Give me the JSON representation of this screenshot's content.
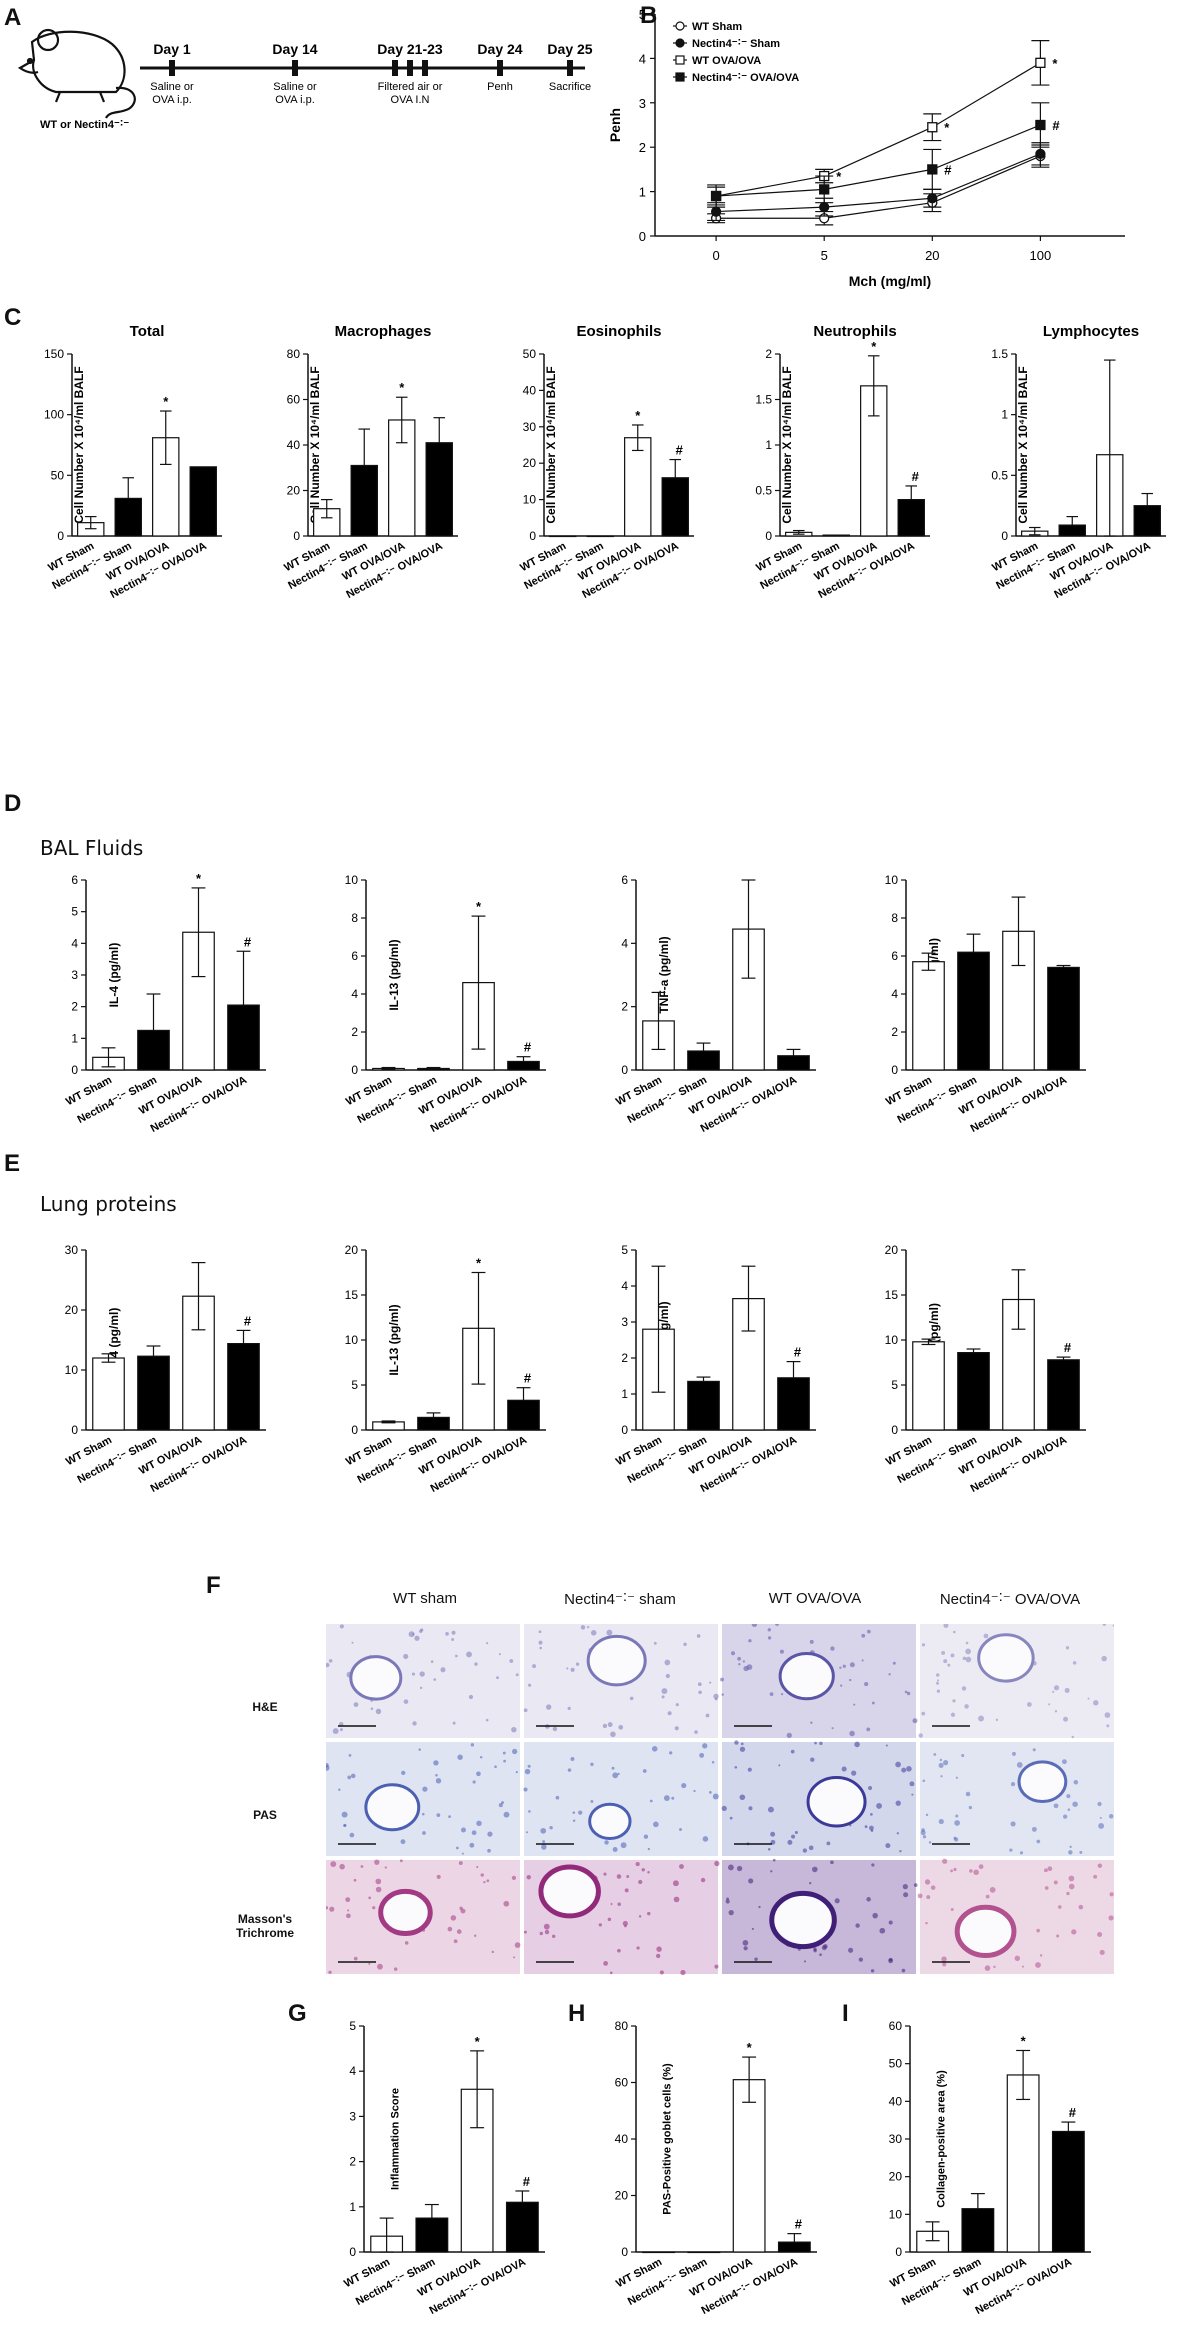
{
  "panel_labels": {
    "A": "A",
    "B": "B",
    "C": "C",
    "D": "D",
    "E": "E",
    "F": "F",
    "G": "G",
    "H": "H",
    "I": "I"
  },
  "timeline": {
    "mouse_label": "WT or Nectin4⁻˸⁻",
    "events": [
      {
        "day": "Day 1",
        "text": [
          "Saline or",
          "OVA i.p."
        ]
      },
      {
        "day": "Day 14",
        "text": [
          "Saline or",
          "OVA i.p."
        ]
      },
      {
        "day": "Day 21-23",
        "text": [
          "Filtered air or",
          "OVA I.N"
        ]
      },
      {
        "day": "Day 24",
        "text": [
          "Penh"
        ]
      },
      {
        "day": "Day 25",
        "text": [
          "Sacrifice"
        ]
      }
    ]
  },
  "legend_b": [
    "WT Sham",
    "Nectin4⁻˸⁻ Sham",
    "WT OVA/OVA",
    "Nectin4⁻˸⁻ OVA/OVA"
  ],
  "groups": [
    "WT Sham",
    "Nectin4⁻˸⁻ Sham",
    "WT OVA/OVA",
    "Nectin4⁻˸⁻ OVA/OVA"
  ],
  "sections": {
    "D": "BAL Fluids",
    "E": "Lung proteins"
  },
  "histology": {
    "columns": [
      "WT sham",
      "Nectin4⁻˸⁻ sham",
      "WT OVA/OVA",
      "Nectin4⁻˸⁻ OVA/OVA"
    ],
    "rows": [
      [
        "H&E"
      ],
      [
        "PAS"
      ],
      [
        "Masson's",
        "Trichrome"
      ]
    ]
  },
  "colors": {
    "open": "#ffffff",
    "filled": "#000000",
    "stroke": "#111111"
  },
  "chart_data": [
    {
      "id": "B",
      "type": "line",
      "title": "",
      "xlabel": "Mch (mg/ml)",
      "ylabel": "Penh",
      "x": [
        0,
        5,
        20,
        100
      ],
      "ylim": [
        0,
        5
      ],
      "yticks": [
        0,
        1,
        2,
        3,
        4,
        5
      ],
      "series": [
        {
          "name": "WT Sham",
          "values": [
            0.4,
            0.4,
            0.75,
            1.8
          ],
          "err": [
            0.1,
            0.15,
            0.2,
            0.25
          ],
          "marker": "open-circle"
        },
        {
          "name": "Nectin4⁻˸⁻ Sham",
          "values": [
            0.55,
            0.65,
            0.85,
            1.85
          ],
          "err": [
            0.2,
            0.2,
            0.2,
            0.25
          ],
          "marker": "filled-circle"
        },
        {
          "name": "WT OVA/OVA",
          "values": [
            0.9,
            1.35,
            2.45,
            3.9
          ],
          "err": [
            0.25,
            0.15,
            0.3,
            0.5
          ],
          "marker": "open-square"
        },
        {
          "name": "Nectin4⁻˸⁻ OVA/OVA",
          "values": [
            0.9,
            1.05,
            1.5,
            2.5
          ],
          "err": [
            0.2,
            0.3,
            0.45,
            0.5
          ],
          "marker": "filled-square"
        }
      ],
      "annotations": [
        {
          "series": 2,
          "x": 5,
          "text": "*"
        },
        {
          "series": 2,
          "x": 20,
          "text": "*"
        },
        {
          "series": 2,
          "x": 100,
          "text": "*"
        },
        {
          "series": 3,
          "x": 20,
          "text": "#"
        },
        {
          "series": 3,
          "x": 100,
          "text": "#"
        }
      ]
    },
    {
      "id": "C-total",
      "type": "bar",
      "title": "Total",
      "ylabel": "Cell Number X 10⁴/ml BALF",
      "ylim": [
        0,
        150
      ],
      "yticks": [
        0,
        50,
        100,
        150
      ],
      "values": [
        11,
        31,
        81,
        57
      ],
      "err": [
        5,
        17,
        22,
        0
      ],
      "marks": [
        "",
        "",
        "*",
        ""
      ]
    },
    {
      "id": "C-macrophages",
      "type": "bar",
      "title": "Macrophages",
      "ylabel": "Cell Number X 10⁴/ml BALF",
      "ylim": [
        0,
        80
      ],
      "yticks": [
        0,
        20,
        40,
        60,
        80
      ],
      "values": [
        12,
        31,
        51,
        41
      ],
      "err": [
        4,
        16,
        10,
        11
      ],
      "marks": [
        "",
        "",
        "*",
        ""
      ]
    },
    {
      "id": "C-eosinophils",
      "type": "bar",
      "title": "Eosinophils",
      "ylabel": "Cell Number X 10⁴/ml BALF",
      "ylim": [
        0,
        50
      ],
      "yticks": [
        0,
        10,
        20,
        30,
        40,
        50
      ],
      "values": [
        0,
        0,
        27,
        16
      ],
      "err": [
        0,
        0,
        3.5,
        5
      ],
      "marks": [
        "",
        "",
        "*",
        "#"
      ]
    },
    {
      "id": "C-neutrophils",
      "type": "bar",
      "title": "Neutrophils",
      "ylabel": "Cell Number X 10⁴/ml BALF",
      "ylim": [
        0,
        2
      ],
      "yticks": [
        0,
        0.5,
        1,
        1.5,
        2
      ],
      "values": [
        0.04,
        0.01,
        1.65,
        0.4
      ],
      "err": [
        0.02,
        0.0,
        0.33,
        0.15
      ],
      "marks": [
        "",
        "",
        "*",
        "#"
      ]
    },
    {
      "id": "C-lymphocytes",
      "type": "bar",
      "title": "Lymphocytes",
      "ylabel": "Cell Number X 10⁴/ml BALF",
      "ylim": [
        0,
        1.5
      ],
      "yticks": [
        0,
        0.5,
        1,
        1.5
      ],
      "values": [
        0.04,
        0.09,
        0.67,
        0.25
      ],
      "err": [
        0.03,
        0.07,
        0.78,
        0.1
      ],
      "marks": [
        "",
        "",
        "",
        ""
      ]
    },
    {
      "id": "D-IL4",
      "type": "bar",
      "title": "",
      "ylabel": "IL-4 (pg/ml)",
      "ylim": [
        0,
        6
      ],
      "yticks": [
        0,
        1,
        2,
        3,
        4,
        5,
        6
      ],
      "values": [
        0.4,
        1.25,
        4.35,
        2.05
      ],
      "err": [
        0.3,
        1.15,
        1.4,
        1.7
      ],
      "marks": [
        "",
        "",
        "*",
        "#"
      ]
    },
    {
      "id": "D-IL13",
      "type": "bar",
      "title": "",
      "ylabel": "IL-13 (pg/ml)",
      "ylim": [
        0,
        10
      ],
      "yticks": [
        0,
        2,
        4,
        6,
        8,
        10
      ],
      "values": [
        0.08,
        0.08,
        4.6,
        0.45
      ],
      "err": [
        0.05,
        0.05,
        3.5,
        0.25
      ],
      "marks": [
        "",
        "",
        "*",
        "#"
      ]
    },
    {
      "id": "D-TNFa",
      "type": "bar",
      "title": "",
      "ylabel": "TNF-a (pg/ml)",
      "ylim": [
        0,
        6
      ],
      "yticks": [
        0,
        2,
        4,
        6
      ],
      "values": [
        1.55,
        0.6,
        4.45,
        0.45
      ],
      "err": [
        0.9,
        0.25,
        1.55,
        0.2
      ],
      "marks": [
        "",
        "",
        "",
        ""
      ]
    },
    {
      "id": "D-IFNg",
      "type": "bar",
      "title": "",
      "ylabel": "IFN-g (pg/ml)",
      "ylim": [
        0,
        10
      ],
      "yticks": [
        0,
        2,
        4,
        6,
        8,
        10
      ],
      "values": [
        5.7,
        6.2,
        7.3,
        5.4
      ],
      "err": [
        0.45,
        0.95,
        1.8,
        0.1
      ],
      "marks": [
        "",
        "",
        "",
        ""
      ]
    },
    {
      "id": "E-IL4",
      "type": "bar",
      "title": "",
      "ylabel": "IL-4 (pg/ml)",
      "ylim": [
        0,
        30
      ],
      "yticks": [
        0,
        10,
        20,
        30
      ],
      "values": [
        12,
        12.3,
        22.3,
        14.4
      ],
      "err": [
        0.7,
        1.7,
        5.6,
        2.2
      ],
      "marks": [
        "",
        "",
        "",
        "#"
      ]
    },
    {
      "id": "E-IL13",
      "type": "bar",
      "title": "",
      "ylabel": "IL-13 (pg/ml)",
      "ylim": [
        0,
        20
      ],
      "yticks": [
        0,
        5,
        10,
        15,
        20
      ],
      "values": [
        0.9,
        1.4,
        11.3,
        3.3
      ],
      "err": [
        0.1,
        0.5,
        6.2,
        1.4
      ],
      "marks": [
        "",
        "",
        "*",
        "#"
      ]
    },
    {
      "id": "E-TNFa",
      "type": "bar",
      "title": "",
      "ylabel": "TNF-a (pg/ml)",
      "ylim": [
        0,
        5
      ],
      "yticks": [
        0,
        1,
        2,
        3,
        4,
        5
      ],
      "values": [
        2.8,
        1.35,
        3.65,
        1.45
      ],
      "err": [
        1.75,
        0.12,
        0.9,
        0.45
      ],
      "marks": [
        "",
        "",
        "",
        "#"
      ]
    },
    {
      "id": "E-IFNg",
      "type": "bar",
      "title": "",
      "ylabel": "IFN-g (pg/ml)",
      "ylim": [
        0,
        20
      ],
      "yticks": [
        0,
        5,
        10,
        15,
        20
      ],
      "values": [
        9.8,
        8.6,
        14.5,
        7.8
      ],
      "err": [
        0.3,
        0.4,
        3.3,
        0.3
      ],
      "marks": [
        "",
        "",
        "",
        "#"
      ]
    },
    {
      "id": "G",
      "type": "bar",
      "title": "",
      "ylabel": "Inflammation Score",
      "ylim": [
        0,
        5
      ],
      "yticks": [
        0,
        1,
        2,
        3,
        4,
        5
      ],
      "values": [
        0.35,
        0.75,
        3.6,
        1.1
      ],
      "err": [
        0.4,
        0.3,
        0.85,
        0.25
      ],
      "marks": [
        "",
        "",
        "*",
        "#"
      ]
    },
    {
      "id": "H",
      "type": "bar",
      "title": "",
      "ylabel": "PAS-Positive goblet cells (%)",
      "ylim": [
        0,
        80
      ],
      "yticks": [
        0,
        20,
        40,
        60,
        80
      ],
      "values": [
        0,
        0,
        61,
        3.5
      ],
      "err": [
        0,
        0,
        8,
        3
      ],
      "marks": [
        "",
        "",
        "*",
        "#"
      ]
    },
    {
      "id": "I",
      "type": "bar",
      "title": "",
      "ylabel": "Collagen-positive area (%)",
      "ylim": [
        0,
        60
      ],
      "yticks": [
        0,
        10,
        20,
        30,
        40,
        50,
        60
      ],
      "values": [
        5.5,
        11.5,
        47,
        32
      ],
      "err": [
        2.5,
        4,
        6.5,
        2.5
      ],
      "marks": [
        "",
        "",
        "*",
        "#"
      ]
    }
  ]
}
